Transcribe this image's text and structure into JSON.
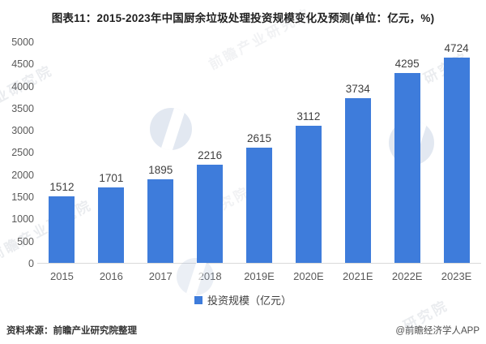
{
  "title": "图表11：2015-2023年中国厨余垃圾处理投资规模变化及预测(单位：亿元，%)",
  "chart_data": {
    "type": "bar",
    "title": "2015-2023年中国厨余垃圾处理投资规模变化及预测",
    "unit": "亿元",
    "categories": [
      "2015",
      "2016",
      "2017",
      "2018",
      "2019E",
      "2020E",
      "2021E",
      "2022E",
      "2023E"
    ],
    "series": [
      {
        "name": "投资规模（亿元）",
        "values": [
          1512,
          1701,
          1895,
          2216,
          2615,
          3112,
          3734,
          4295,
          4724
        ]
      }
    ],
    "ylim": [
      0,
      5000
    ],
    "ytick_step": 500,
    "grid": false,
    "legend_position": "bottom",
    "bar_color": "#3E7CDB",
    "value_labels": true
  },
  "legend": {
    "label": "投资规模（亿元）",
    "marker_color": "#3E7CDB"
  },
  "footer": {
    "source": "资料来源：前瞻产业研究院整理",
    "credit": "@前瞻经济学人APP"
  },
  "watermark": {
    "brand": "前瞻产业研究院",
    "corner": "研究院",
    "partial": "业研究院"
  }
}
